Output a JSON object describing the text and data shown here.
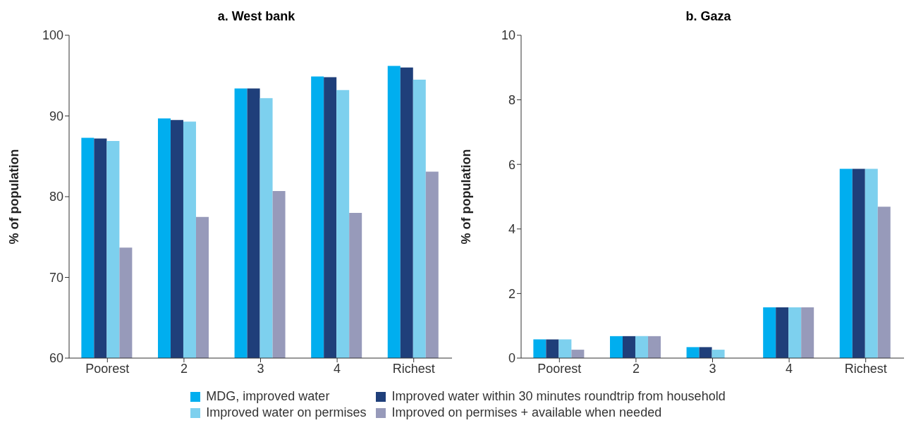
{
  "chart_data": [
    {
      "type": "bar",
      "title": "a. West bank",
      "ylabel": "% of population",
      "categories": [
        "Poorest",
        "2",
        "3",
        "4",
        "Richest"
      ],
      "ylim": [
        60,
        100
      ],
      "yticks": [
        60,
        70,
        80,
        90,
        100
      ],
      "grid": false,
      "legend": "bottom",
      "series": [
        {
          "name": "MDG, improved water",
          "color": "#00aeef",
          "values": [
            87.3,
            89.7,
            93.4,
            94.9,
            96.2
          ]
        },
        {
          "name": "Improved water within 30 minutes roundtrip from household",
          "color": "#1f3f7a",
          "values": [
            87.2,
            89.5,
            93.4,
            94.8,
            96.0
          ]
        },
        {
          "name": "Improved water on permises",
          "color": "#7dd0ee",
          "values": [
            86.9,
            89.3,
            92.2,
            93.2,
            94.5
          ]
        },
        {
          "name": "Improved on permises + available when needed",
          "color": "#979aba",
          "values": [
            73.7,
            77.5,
            80.7,
            78.0,
            83.1
          ]
        }
      ]
    },
    {
      "type": "bar",
      "title": "b. Gaza",
      "ylabel": "% of population",
      "categories": [
        "Poorest",
        "2",
        "3",
        "4",
        "Richest"
      ],
      "ylim": [
        0,
        10
      ],
      "yticks": [
        0,
        2,
        4,
        6,
        8,
        10
      ],
      "grid": false,
      "series": [
        {
          "color": "#00aeef",
          "values": [
            0.58,
            0.68,
            0.34,
            1.57,
            5.86
          ]
        },
        {
          "color": "#1f3f7a",
          "values": [
            0.58,
            0.68,
            0.34,
            1.57,
            5.86
          ]
        },
        {
          "color": "#7dd0ee",
          "values": [
            0.58,
            0.68,
            0.26,
            1.57,
            5.86
          ]
        },
        {
          "color": "#979aba",
          "values": [
            0.26,
            0.68,
            0,
            1.57,
            4.69
          ]
        }
      ]
    }
  ]
}
